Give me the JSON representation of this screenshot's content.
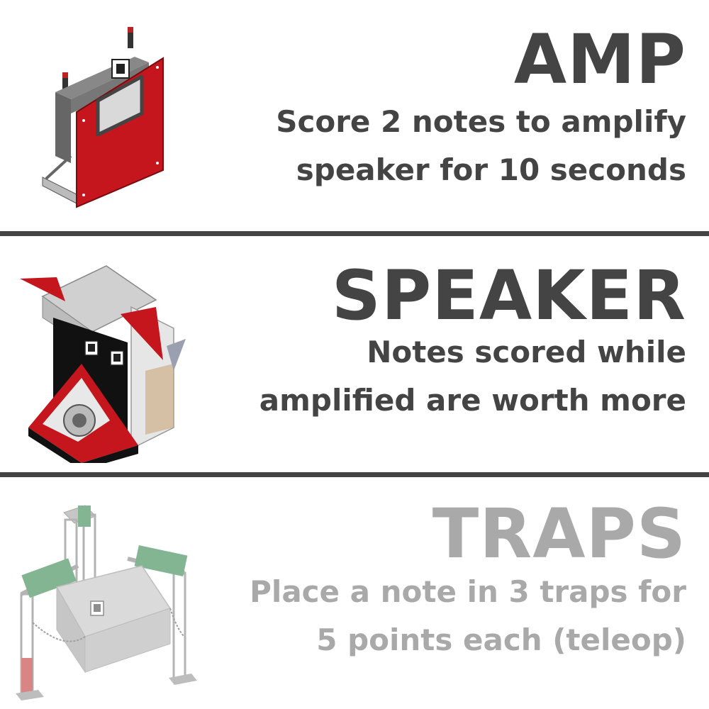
{
  "amp": {
    "title": "AMP",
    "description": "Score 2 notes to amplify speaker for 10 seconds",
    "illustration_icon": "amp-structure-illustration"
  },
  "speaker": {
    "title": "SPEAKER",
    "description": "Notes scored while amplified are worth more",
    "illustration_icon": "speaker-structure-illustration"
  },
  "traps": {
    "title": "TRAPS",
    "description": "Place a note in 3 traps for 5 points each (teleop)",
    "illustration_icon": "stage-truss-illustration"
  },
  "colors": {
    "text_dark": "#444444",
    "text_light": "#a9a9a9",
    "divider": "#444444",
    "accent_red": "#c4161c"
  }
}
